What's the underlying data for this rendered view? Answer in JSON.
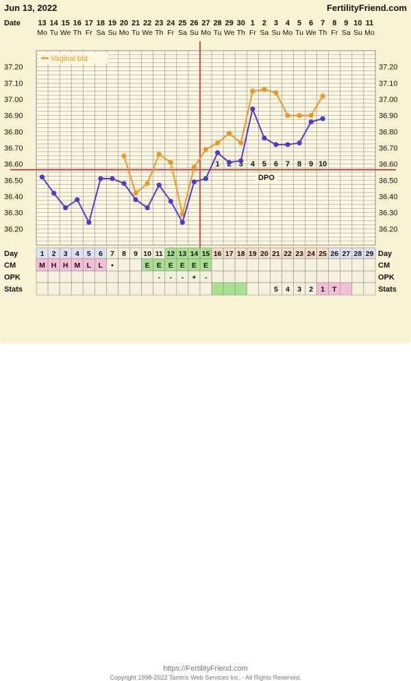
{
  "header": {
    "date": "Jun 13, 2022",
    "site": "FertilityFriend.com",
    "date_label": "Date",
    "day_label": "Day",
    "cm_label": "CM",
    "opk_label": "OPK",
    "stats_label": "Stats"
  },
  "colors": {
    "vaginal": "#f0961e",
    "blue": "#4b3ccd",
    "coverline": "#d84c4c",
    "grid": "#8c8c8c",
    "green": "#a8e08e",
    "pink": "#f4bfd6",
    "peach": "#f7dcc6",
    "lavender": "#dfe1f3",
    "panel": "#f8f3d4"
  },
  "chart_data": {
    "type": "line",
    "legend": "Vaginal bbt",
    "legend_position": "top-left",
    "grid": true,
    "ylim": [
      36.1,
      37.3
    ],
    "yticks": [
      "36.20",
      "36.30",
      "36.40",
      "36.50",
      "36.60",
      "36.70",
      "36.80",
      "36.90",
      "37.00",
      "37.10",
      "37.20"
    ],
    "dates": [
      "13",
      "14",
      "15",
      "16",
      "17",
      "18",
      "19",
      "20",
      "21",
      "22",
      "23",
      "24",
      "25",
      "26",
      "27",
      "28",
      "29",
      "30",
      "1",
      "2",
      "3",
      "4",
      "5",
      "6",
      "7",
      "8",
      "9",
      "10",
      "11"
    ],
    "weekdays": [
      "Mo",
      "Tu",
      "We",
      "Th",
      "Fr",
      "Sa",
      "Su",
      "Mo",
      "Tu",
      "We",
      "Th",
      "Fr",
      "Sa",
      "Su",
      "Mo",
      "Tu",
      "We",
      "Th",
      "Fr",
      "Sa",
      "Su",
      "Mo",
      "Tu",
      "We",
      "Th",
      "Fr",
      "Sa",
      "Su",
      "Mo"
    ],
    "cycle_days": [
      "1",
      "2",
      "3",
      "4",
      "5",
      "6",
      "7",
      "8",
      "9",
      "10",
      "11",
      "12",
      "13",
      "14",
      "15",
      "16",
      "17",
      "18",
      "19",
      "20",
      "21",
      "22",
      "23",
      "24",
      "25",
      "26",
      "27",
      "28",
      "29"
    ],
    "series": [
      {
        "name": "Vaginal bbt",
        "color": "#f0961e",
        "values": [
          null,
          null,
          null,
          null,
          null,
          null,
          null,
          36.65,
          36.42,
          36.48,
          36.66,
          36.61,
          36.29,
          36.58,
          36.69,
          36.73,
          36.79,
          36.73,
          37.05,
          37.06,
          37.04,
          36.9,
          36.9,
          36.9,
          37.02,
          null,
          null,
          null,
          null
        ]
      },
      {
        "color": "#4b3ccd",
        "values": [
          36.52,
          36.42,
          36.33,
          36.38,
          36.24,
          36.51,
          36.51,
          36.48,
          36.38,
          36.33,
          36.47,
          36.37,
          36.24,
          36.49,
          36.51,
          36.67,
          36.61,
          36.62,
          36.94,
          36.76,
          36.72,
          36.72,
          36.73,
          36.86,
          36.88,
          null,
          null,
          null,
          null
        ]
      }
    ],
    "coverline": 36.565,
    "ovulation_day_index": 14,
    "dpo_labels": [
      "1",
      "2",
      "3",
      "4",
      "5",
      "6",
      "7",
      "8",
      "9",
      "10"
    ],
    "dpo_start_index": 15,
    "dpo_text": "DPO"
  },
  "rows": {
    "cm": [
      "M",
      "H",
      "H",
      "M",
      "L",
      "L",
      "•",
      "",
      "",
      "E",
      "E",
      "E",
      "E",
      "E",
      "E",
      "",
      "",
      "",
      "",
      "",
      "",
      "",
      "",
      "",
      "",
      "",
      "",
      "",
      ""
    ],
    "opk": [
      "",
      "",
      "",
      "",
      "",
      "",
      "",
      "",
      "",
      "",
      "-",
      "-",
      "-",
      "+",
      "-",
      "",
      "",
      "",
      "",
      "",
      "",
      "",
      "",
      "",
      "",
      "",
      "",
      "",
      ""
    ],
    "stats": [
      "",
      "",
      "",
      "",
      "",
      "",
      "",
      "",
      "",
      "",
      "",
      "",
      "",
      "",
      "",
      "",
      "",
      "",
      "",
      "",
      "5",
      "4",
      "3",
      "2",
      "1",
      "T",
      "",
      "",
      ""
    ]
  },
  "footer": {
    "url": "https://FertilityFriend.com",
    "copyright": "Copyright 1998-2022 Tamtris Web Services Inc. - All Rights Reserved."
  }
}
